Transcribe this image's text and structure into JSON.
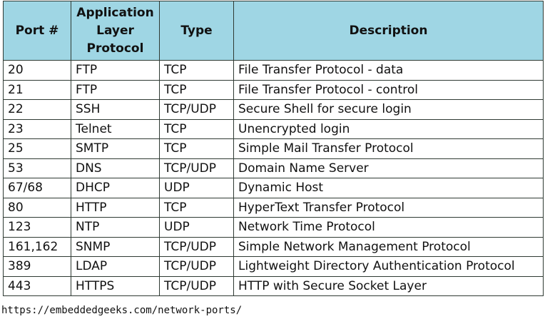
{
  "table": {
    "headers": [
      "Port #",
      "Application Layer Protocol",
      "Type",
      "Description"
    ],
    "rows": [
      [
        "20",
        "FTP",
        "TCP",
        "File Transfer Protocol - data"
      ],
      [
        "21",
        "FTP",
        "TCP",
        "File Transfer Protocol - control"
      ],
      [
        "22",
        "SSH",
        "TCP/UDP",
        "Secure Shell for secure login"
      ],
      [
        "23",
        "Telnet",
        "TCP",
        "Unencrypted login"
      ],
      [
        "25",
        "SMTP",
        "TCP",
        "Simple Mail Transfer Protocol"
      ],
      [
        "53",
        "DNS",
        "TCP/UDP",
        "Domain Name Server"
      ],
      [
        "67/68",
        "DHCP",
        "UDP",
        "Dynamic Host"
      ],
      [
        "80",
        "HTTP",
        "TCP",
        "HyperText Transfer Protocol"
      ],
      [
        "123",
        "NTP",
        "UDP",
        "Network Time Protocol"
      ],
      [
        "161,162",
        "SNMP",
        "TCP/UDP",
        "Simple Network Management Protocol"
      ],
      [
        "389",
        "LDAP",
        "TCP/UDP",
        "Lightweight Directory Authentication Protocol"
      ],
      [
        "443",
        "HTTPS",
        "TCP/UDP",
        "HTTP with Secure Socket Layer"
      ]
    ]
  },
  "source": "https://embeddedgeeks.com/network-ports/",
  "colors": {
    "header_bg": "#9fd6e4",
    "border": "#2f3a33"
  }
}
